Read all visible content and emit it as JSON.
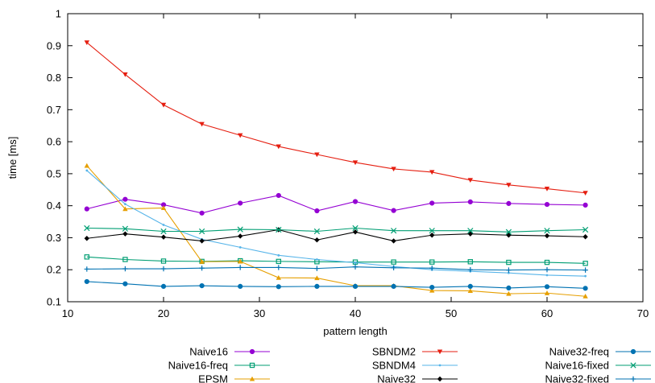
{
  "chart_data": {
    "type": "line",
    "xlabel": "pattern length",
    "ylabel": "time [ms]",
    "xlim": [
      10,
      70
    ],
    "ylim": [
      0.1,
      1
    ],
    "xticks": [
      "10",
      "20",
      "30",
      "40",
      "50",
      "60",
      "70"
    ],
    "yticks": [
      "0.1",
      "0.2",
      "0.3",
      "0.4",
      "0.5",
      "0.6",
      "0.7",
      "0.8",
      "0.9",
      "1"
    ],
    "grid": false,
    "legend_position": "bottom",
    "x": [
      12,
      16,
      20,
      24,
      28,
      32,
      36,
      40,
      44,
      48,
      52,
      56,
      60,
      64
    ],
    "series": [
      {
        "name": "Naive16",
        "color": "#9400d3",
        "marker": "circle",
        "values": [
          0.39,
          0.42,
          0.403,
          0.377,
          0.408,
          0.432,
          0.384,
          0.413,
          0.385,
          0.408,
          0.412,
          0.407,
          0.404,
          0.402
        ]
      },
      {
        "name": "Naive16-freq",
        "color": "#009e73",
        "marker": "square",
        "values": [
          0.24,
          0.232,
          0.227,
          0.226,
          0.228,
          0.226,
          0.225,
          0.224,
          0.224,
          0.224,
          0.225,
          0.223,
          0.223,
          0.22
        ]
      },
      {
        "name": "EPSM",
        "color": "#e69f00",
        "marker": "triangle",
        "values": [
          0.525,
          0.39,
          0.393,
          0.225,
          0.226,
          0.175,
          0.174,
          0.15,
          0.15,
          0.135,
          0.134,
          0.125,
          0.127,
          0.117
        ]
      },
      {
        "name": "SBNDM2",
        "color": "#e51e10",
        "marker": "triangle-down",
        "values": [
          0.91,
          0.81,
          0.715,
          0.655,
          0.62,
          0.585,
          0.56,
          0.535,
          0.515,
          0.505,
          0.48,
          0.465,
          0.453,
          0.44
        ]
      },
      {
        "name": "SBNDM4",
        "color": "#56b4e9",
        "marker": "dot",
        "values": [
          0.51,
          0.405,
          0.34,
          0.295,
          0.27,
          0.245,
          0.232,
          0.222,
          0.21,
          0.2,
          0.195,
          0.19,
          0.183,
          0.18
        ]
      },
      {
        "name": "Naive32",
        "color": "#000000",
        "marker": "diamond",
        "values": [
          0.298,
          0.312,
          0.302,
          0.29,
          0.305,
          0.325,
          0.293,
          0.318,
          0.29,
          0.308,
          0.312,
          0.308,
          0.306,
          0.303
        ]
      },
      {
        "name": "Naive32-freq",
        "color": "#0072b2",
        "marker": "circle",
        "values": [
          0.163,
          0.156,
          0.148,
          0.15,
          0.148,
          0.147,
          0.148,
          0.148,
          0.148,
          0.145,
          0.148,
          0.143,
          0.147,
          0.142
        ]
      },
      {
        "name": "Naive16-fixed",
        "color": "#009e73",
        "marker": "x",
        "values": [
          0.33,
          0.328,
          0.32,
          0.32,
          0.326,
          0.325,
          0.32,
          0.33,
          0.322,
          0.322,
          0.322,
          0.318,
          0.322,
          0.325
        ]
      },
      {
        "name": "Naive32-fixed",
        "color": "#0072b2",
        "marker": "plus",
        "values": [
          0.202,
          0.203,
          0.203,
          0.205,
          0.207,
          0.207,
          0.204,
          0.209,
          0.206,
          0.205,
          0.2,
          0.199,
          0.2,
          0.199
        ]
      }
    ]
  }
}
